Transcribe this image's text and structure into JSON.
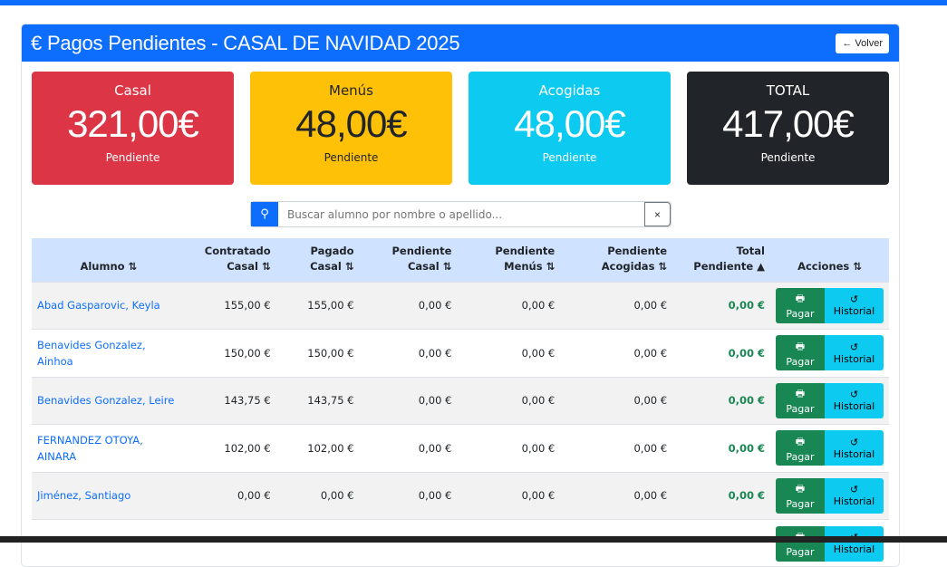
{
  "header": {
    "title": "€ Pagos Pendientes - CASAL DE NAVIDAD 2025",
    "back_label": "← Volver"
  },
  "stats": [
    {
      "title": "Casal",
      "value": "321,00€",
      "sub": "Pendiente",
      "bg": "#dc3545",
      "fg": "#ffffff"
    },
    {
      "title": "Menús",
      "value": "48,00€",
      "sub": "Pendiente",
      "bg": "#ffc107",
      "fg": "#212529"
    },
    {
      "title": "Acogidas",
      "value": "48,00€",
      "sub": "Pendiente",
      "bg": "#0dcaf0",
      "fg": "#ffffff"
    },
    {
      "title": "TOTAL",
      "value": "417,00€",
      "sub": "Pendiente",
      "bg": "#212529",
      "fg": "#ffffff"
    }
  ],
  "search": {
    "placeholder": "Buscar alumno por nombre o apellido...",
    "clear": "×"
  },
  "table": {
    "headers": [
      [
        "",
        "Alumno ⇅"
      ],
      [
        "Contratado",
        "Casal ⇅"
      ],
      [
        "Pagado",
        "Casal ⇅"
      ],
      [
        "Pendiente",
        "Casal ⇅"
      ],
      [
        "Pendiente",
        "Menús ⇅"
      ],
      [
        "Pendiente",
        "Acogidas ⇅"
      ],
      [
        "Total",
        "Pendiente ▲"
      ],
      [
        "",
        "Acciones ⇅"
      ]
    ],
    "pay_label": "Pagar",
    "history_label": "Historial",
    "rows": [
      [
        "Abad Gasparovic, Keyla",
        "155,00 €",
        "155,00 €",
        "0,00 €",
        "0,00 €",
        "0,00 €",
        "0,00 €"
      ],
      [
        "Benavides Gonzalez, Ainhoa",
        "150,00 €",
        "150,00 €",
        "0,00 €",
        "0,00 €",
        "0,00 €",
        "0,00 €"
      ],
      [
        "Benavides Gonzalez, Leire",
        "143,75 €",
        "143,75 €",
        "0,00 €",
        "0,00 €",
        "0,00 €",
        "0,00 €"
      ],
      [
        "FERNANDEZ OTOYA, AINARA",
        "102,00 €",
        "102,00 €",
        "0,00 €",
        "0,00 €",
        "0,00 €",
        "0,00 €"
      ],
      [
        "Jiménez, Santiago",
        "0,00 €",
        "0,00 €",
        "0,00 €",
        "0,00 €",
        "0,00 €",
        "0,00 €"
      ],
      [
        "",
        "",
        "",
        "",
        "",
        "",
        ""
      ]
    ]
  }
}
